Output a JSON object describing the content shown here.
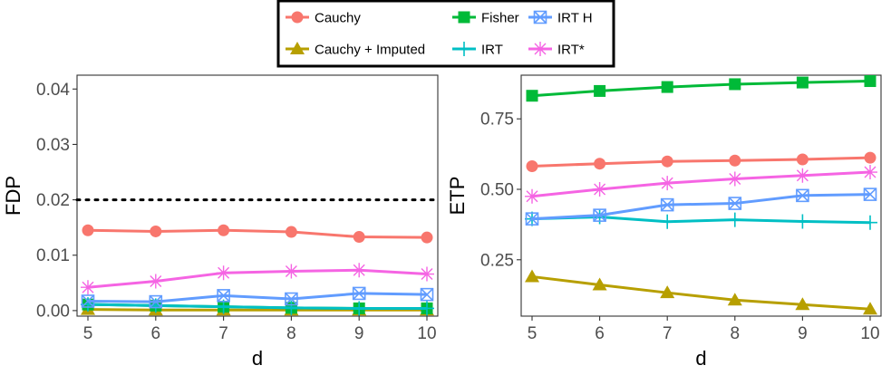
{
  "chart_data": [
    {
      "type": "line",
      "title": "",
      "xlabel": "d",
      "ylabel": "FDP",
      "x": [
        5,
        6,
        7,
        8,
        9,
        10
      ],
      "xticks": [
        "5",
        "6",
        "7",
        "8",
        "9",
        "10"
      ],
      "ylim": [
        -0.001,
        0.0425
      ],
      "yticks": [
        0.0,
        0.01,
        0.02,
        0.03,
        0.04
      ],
      "ytick_labels": [
        "0.00",
        "0.01",
        "0.02",
        "0.03",
        "0.04"
      ],
      "reference_line": {
        "y": 0.02,
        "style": "dotted",
        "color": "#000000"
      },
      "series": [
        {
          "name": "Cauchy",
          "values": [
            0.0145,
            0.0143,
            0.0145,
            0.0142,
            0.0133,
            0.0132
          ]
        },
        {
          "name": "Cauchy + Imputed",
          "values": [
            0.0002,
            0.0001,
            0.0001,
            0.0001,
            0.0001,
            0.0001
          ]
        },
        {
          "name": "Fisher",
          "values": [
            0.0011,
            0.0009,
            0.0007,
            0.0005,
            0.0004,
            0.0004
          ]
        },
        {
          "name": "IRT",
          "values": [
            0.0011,
            0.0009,
            0.0007,
            0.0005,
            0.0004,
            0.0004
          ]
        },
        {
          "name": "IRT H",
          "values": [
            0.0017,
            0.0016,
            0.0027,
            0.0021,
            0.0031,
            0.0029
          ]
        },
        {
          "name": "IRT*",
          "values": [
            0.0042,
            0.0053,
            0.0068,
            0.0071,
            0.0073,
            0.0066
          ]
        }
      ]
    },
    {
      "type": "line",
      "title": "",
      "xlabel": "d",
      "ylabel": "ETP",
      "x": [
        5,
        6,
        7,
        8,
        9,
        10
      ],
      "xticks": [
        "5",
        "6",
        "7",
        "8",
        "9",
        "10"
      ],
      "ylim": [
        0.05,
        0.905
      ],
      "yticks": [
        0.25,
        0.5,
        0.75
      ],
      "ytick_labels": [
        "0.25",
        "0.50",
        "0.75"
      ],
      "series": [
        {
          "name": "Cauchy",
          "values": [
            0.582,
            0.591,
            0.599,
            0.602,
            0.606,
            0.612
          ]
        },
        {
          "name": "Cauchy + Imputed",
          "values": [
            0.19,
            0.161,
            0.133,
            0.107,
            0.091,
            0.075
          ]
        },
        {
          "name": "Fisher",
          "values": [
            0.832,
            0.849,
            0.863,
            0.873,
            0.879,
            0.884
          ]
        },
        {
          "name": "IRT",
          "values": [
            0.395,
            0.402,
            0.385,
            0.392,
            0.386,
            0.382
          ]
        },
        {
          "name": "IRT H",
          "values": [
            0.395,
            0.408,
            0.445,
            0.45,
            0.478,
            0.482
          ]
        },
        {
          "name": "IRT*",
          "values": [
            0.475,
            0.5,
            0.522,
            0.537,
            0.549,
            0.561
          ]
        }
      ]
    }
  ],
  "legend": {
    "items": [
      {
        "name": "Cauchy",
        "color": "#F8766D",
        "marker": "circle"
      },
      {
        "name": "Cauchy + Imputed",
        "color": "#B79F00",
        "marker": "triangle"
      },
      {
        "name": "Fisher",
        "color": "#00BA38",
        "marker": "square"
      },
      {
        "name": "IRT",
        "color": "#00BFC4",
        "marker": "plus"
      },
      {
        "name": "IRT H",
        "color": "#619CFF",
        "marker": "boxed-x"
      },
      {
        "name": "IRT*",
        "color": "#F564E3",
        "marker": "asterisk"
      }
    ]
  }
}
